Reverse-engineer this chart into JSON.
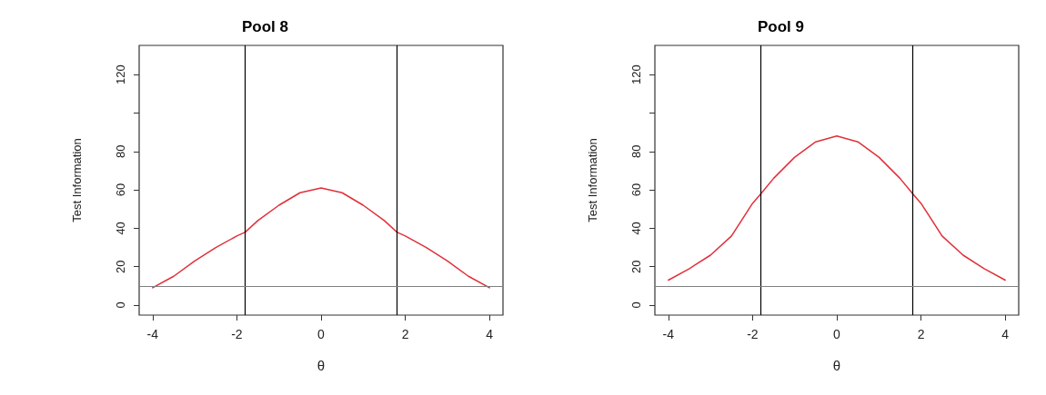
{
  "chart_data": [
    {
      "type": "line",
      "title": "Pool 8",
      "xlabel": "θ",
      "ylabel": "Test Information",
      "x": [
        -4,
        -3.5,
        -3,
        -2.5,
        -2,
        -1.8,
        -1.5,
        -1,
        -0.5,
        0,
        0.5,
        1,
        1.5,
        1.8,
        2,
        2.5,
        3,
        3.5,
        4
      ],
      "series": [
        {
          "color": "#e0303a",
          "values": [
            9,
            15,
            23,
            30,
            36,
            38,
            44,
            52,
            58.5,
            61,
            58.5,
            52,
            44,
            38,
            36,
            30,
            23,
            15,
            9
          ]
        }
      ],
      "xlim": [
        -4.32,
        4.32
      ],
      "xticks": [
        -4,
        -2,
        0,
        2,
        4
      ],
      "ylim": [
        -5.2,
        135.2
      ],
      "yticks": [
        0,
        20,
        40,
        60,
        80,
        {
          "value": 100,
          "label": null
        },
        120
      ],
      "ref_lines": [
        {
          "axis": "x",
          "value": -1.8,
          "color": "#000000"
        },
        {
          "axis": "x",
          "value": 1.8,
          "color": "#000000"
        },
        {
          "axis": "y",
          "value": 10,
          "color": "#808080"
        }
      ]
    },
    {
      "type": "line",
      "title": "Pool 9",
      "xlabel": "θ",
      "ylabel": "Test Information",
      "x": [
        -4,
        -3.5,
        -3,
        -2.5,
        -2,
        -1.8,
        -1.5,
        -1,
        -0.5,
        0,
        0.5,
        1,
        1.5,
        1.8,
        2,
        2.5,
        3,
        3.5,
        4
      ],
      "series": [
        {
          "color": "#e0303a",
          "values": [
            13,
            19,
            26,
            36,
            53,
            58,
            66,
            77,
            85,
            88,
            85,
            77,
            66,
            58,
            53,
            36,
            26,
            19,
            13
          ]
        }
      ],
      "xlim": [
        -4.32,
        4.32
      ],
      "xticks": [
        -4,
        -2,
        0,
        2,
        4
      ],
      "ylim": [
        -5.2,
        135.2
      ],
      "yticks": [
        0,
        20,
        40,
        60,
        80,
        {
          "value": 100,
          "label": null
        },
        120
      ],
      "ref_lines": [
        {
          "axis": "x",
          "value": -1.8,
          "color": "#000000"
        },
        {
          "axis": "x",
          "value": 1.8,
          "color": "#000000"
        },
        {
          "axis": "y",
          "value": 10,
          "color": "#808080"
        }
      ]
    }
  ]
}
